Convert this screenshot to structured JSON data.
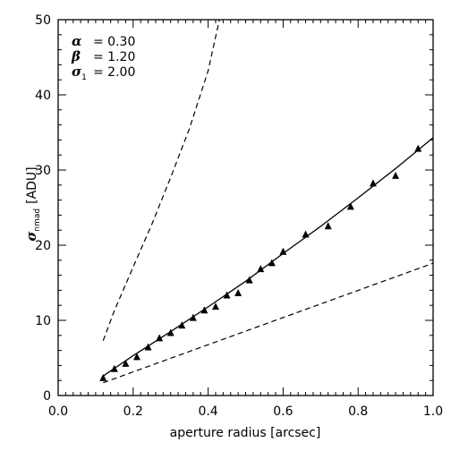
{
  "chart_data": {
    "type": "scatter",
    "xlabel": "aperture radius [arcsec]",
    "ylabel_symbol": "σ",
    "ylabel_subscript": "nmad",
    "ylabel_unit": "[ADU]",
    "xlim": [
      0.0,
      1.0
    ],
    "ylim": [
      0,
      50
    ],
    "x_ticks": [
      "0.0",
      "0.2",
      "0.4",
      "0.6",
      "0.8",
      "1.0"
    ],
    "y_ticks": [
      "0",
      "10",
      "20",
      "30",
      "40",
      "50"
    ],
    "annotations": [
      {
        "symbol": "α",
        "subscript": "",
        "value": "= 0.30"
      },
      {
        "symbol": "β",
        "subscript": "",
        "value": "= 1.20"
      },
      {
        "symbol": "σ",
        "subscript": "1",
        "value": "= 2.00"
      }
    ],
    "series": [
      {
        "marker": "triangle",
        "x": [
          0.12,
          0.15,
          0.18,
          0.21,
          0.24,
          0.27,
          0.3,
          0.33,
          0.36,
          0.39,
          0.42,
          0.45,
          0.48,
          0.51,
          0.54,
          0.57,
          0.6,
          0.66,
          0.72,
          0.78,
          0.84,
          0.9,
          0.96
        ],
        "y": [
          2.3,
          3.5,
          4.2,
          5.1,
          6.4,
          7.6,
          8.3,
          9.3,
          10.3,
          11.3,
          11.8,
          13.3,
          13.6,
          15.3,
          16.8,
          17.6,
          19.1,
          21.4,
          22.5,
          25.1,
          28.2,
          29.2,
          32.8
        ]
      }
    ],
    "curves": [
      {
        "style": "solid",
        "x": [
          0.12,
          0.2,
          0.3,
          0.4,
          0.5,
          0.6,
          0.7,
          0.8,
          0.9,
          1.0
        ],
        "y": [
          2.6,
          5.3,
          8.5,
          11.8,
          15.2,
          18.9,
          22.5,
          26.3,
          30.2,
          34.3
        ]
      },
      {
        "style": "dashed",
        "x": [
          0.12,
          1.0
        ],
        "y": [
          1.7,
          17.6
        ]
      },
      {
        "style": "dashed",
        "x": [
          0.12,
          0.15,
          0.2,
          0.25,
          0.3,
          0.35,
          0.4,
          0.43
        ],
        "y": [
          7.3,
          11.3,
          17.1,
          22.8,
          29.0,
          35.5,
          43.2,
          50.0
        ]
      }
    ]
  }
}
